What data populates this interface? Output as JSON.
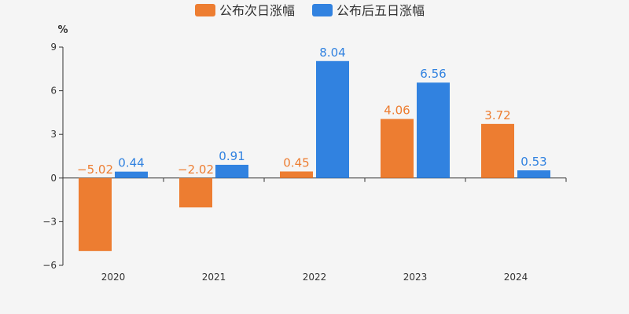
{
  "chart_data": {
    "type": "bar",
    "categories": [
      "2020",
      "2021",
      "2022",
      "2023",
      "2024"
    ],
    "series": [
      {
        "name": "公布次日涨幅",
        "color": "#ed7d31",
        "values": [
          -5.02,
          -2.02,
          0.45,
          4.06,
          3.72
        ]
      },
      {
        "name": "公布后五日涨幅",
        "color": "#3182e0",
        "values": [
          0.44,
          0.91,
          8.04,
          6.56,
          0.53
        ]
      }
    ],
    "ylabel": "%",
    "ylim": [
      -6,
      9
    ],
    "yticks": [
      -6,
      -3,
      0,
      3,
      6,
      9
    ],
    "grid": false,
    "legend_position": "top-center",
    "value_labels": true
  }
}
